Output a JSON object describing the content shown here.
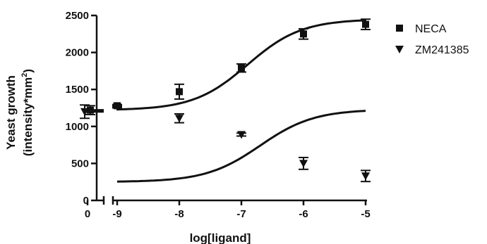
{
  "chart_data": {
    "type": "scatter",
    "xlabel": "log[ligand]",
    "ylabel_line1": "Yeast growth",
    "ylabel_line2": "(intensity*mm",
    "ylabel_sup": "2",
    "ylabel_close": ")",
    "ylim": [
      0,
      2500
    ],
    "y_ticks": [
      0,
      500,
      1000,
      1500,
      2000,
      2500
    ],
    "x_break_ticks": [
      "0"
    ],
    "x_ticks": [
      -9,
      -8,
      -7,
      -6,
      -5
    ],
    "x_range": [
      -9,
      -5
    ],
    "legend_position": "top-right",
    "series": [
      {
        "name": "NECA",
        "marker": "square",
        "baseline": {
          "x": "0",
          "y": 1220,
          "err": 60
        },
        "points": [
          {
            "x": -9,
            "y": 1280,
            "err": 15
          },
          {
            "x": -8,
            "y": 1470,
            "err": 100
          },
          {
            "x": -7,
            "y": 1790,
            "err": 55
          },
          {
            "x": -6,
            "y": 2250,
            "err": 70
          },
          {
            "x": -5,
            "y": 2380,
            "err": 70
          }
        ],
        "fit": {
          "bottom": 1220,
          "top": 2450,
          "logEC50": -6.9,
          "hill": 1
        }
      },
      {
        "name": "ZM241385",
        "marker": "triangle-down",
        "baseline": {
          "x": "0",
          "y": 1200,
          "err": 90
        },
        "points": [
          {
            "x": -9,
            "y": 1265,
            "err": 15
          },
          {
            "x": -8,
            "y": 1110,
            "err": 60
          },
          {
            "x": -7,
            "y": 890,
            "err": 20
          },
          {
            "x": -6,
            "y": 500,
            "err": 80
          },
          {
            "x": -5,
            "y": 330,
            "err": 75
          }
        ],
        "fit": {
          "bottom": 250,
          "top": 1230,
          "logEC50": -6.7,
          "hill": 1
        }
      }
    ]
  }
}
